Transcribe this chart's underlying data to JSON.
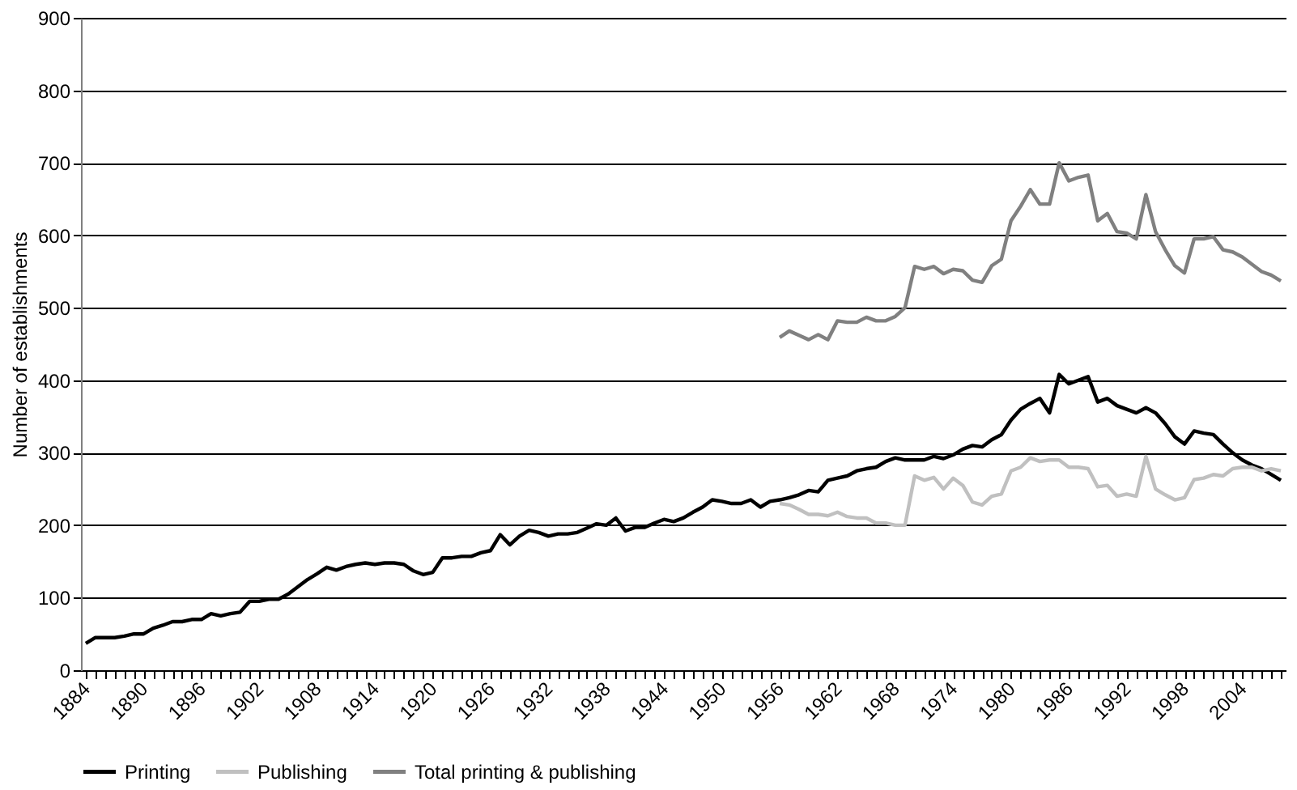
{
  "chart_data": {
    "type": "line",
    "ylabel": "Number of establishments",
    "categories": [
      "1884",
      null,
      null,
      null,
      null,
      null,
      "1890",
      null,
      null,
      null,
      null,
      null,
      "1896",
      null,
      null,
      null,
      null,
      null,
      "1902",
      null,
      null,
      null,
      null,
      null,
      "1908",
      null,
      null,
      null,
      null,
      null,
      "1914",
      null,
      null,
      null,
      null,
      null,
      "1920",
      null,
      null,
      null,
      null,
      null,
      "1926",
      null,
      null,
      null,
      null,
      null,
      "1932",
      null,
      null,
      null,
      null,
      null,
      "1938",
      null,
      null,
      null,
      null,
      null,
      "1944",
      null,
      null,
      null,
      null,
      null,
      "1950",
      null,
      null,
      null,
      null,
      null,
      "1956",
      null,
      null,
      null,
      null,
      null,
      "1962",
      null,
      null,
      null,
      null,
      null,
      "1968",
      null,
      null,
      null,
      null,
      null,
      "1974",
      null,
      null,
      null,
      null,
      null,
      "1980",
      null,
      null,
      null,
      null,
      null,
      "1986",
      null,
      null,
      null,
      null,
      null,
      "1992",
      null,
      null,
      null,
      null,
      null,
      "1998",
      null,
      null,
      null,
      null,
      null,
      "2004",
      null,
      null,
      null,
      null
    ],
    "series": [
      {
        "name": "Printing",
        "color": "#000000",
        "values": [
          37,
          45,
          45,
          45,
          47,
          50,
          50,
          58,
          62,
          67,
          67,
          70,
          70,
          78,
          75,
          78,
          80,
          95,
          95,
          98,
          98,
          105,
          115,
          125,
          133,
          142,
          138,
          143,
          146,
          148,
          146,
          148,
          148,
          146,
          137,
          132,
          135,
          155,
          155,
          157,
          157,
          162,
          165,
          187,
          173,
          185,
          193,
          190,
          185,
          188,
          188,
          190,
          196,
          202,
          200,
          210,
          192,
          197,
          197,
          203,
          208,
          205,
          210,
          218,
          225,
          235,
          233,
          230,
          230,
          235,
          225,
          233,
          235,
          238,
          242,
          248,
          246,
          262,
          265,
          268,
          275,
          278,
          280,
          288,
          293,
          290,
          290,
          290,
          295,
          292,
          297,
          305,
          310,
          308,
          318,
          325,
          345,
          360,
          368,
          375,
          355,
          408,
          395,
          400,
          405,
          370,
          375,
          365,
          360,
          355,
          362,
          355,
          340,
          322,
          312,
          330,
          327,
          325,
          312,
          300,
          290,
          283,
          278,
          270,
          262
        ]
      },
      {
        "name": "Publishing",
        "color": "#c0c0c0",
        "values": [
          null,
          null,
          null,
          null,
          null,
          null,
          null,
          null,
          null,
          null,
          null,
          null,
          null,
          null,
          null,
          null,
          null,
          null,
          null,
          null,
          null,
          null,
          null,
          null,
          null,
          null,
          null,
          null,
          null,
          null,
          null,
          null,
          null,
          null,
          null,
          null,
          null,
          null,
          null,
          null,
          null,
          null,
          null,
          null,
          null,
          null,
          null,
          null,
          null,
          null,
          null,
          null,
          null,
          null,
          null,
          null,
          null,
          null,
          null,
          null,
          null,
          null,
          null,
          null,
          null,
          null,
          null,
          null,
          null,
          null,
          null,
          null,
          230,
          228,
          222,
          215,
          215,
          213,
          218,
          212,
          210,
          210,
          203,
          203,
          200,
          200,
          268,
          262,
          266,
          250,
          265,
          255,
          232,
          228,
          240,
          243,
          275,
          280,
          293,
          288,
          290,
          290,
          280,
          280,
          278,
          253,
          255,
          240,
          243,
          240,
          295,
          250,
          242,
          235,
          238,
          263,
          265,
          270,
          268,
          278,
          280,
          280,
          275,
          278,
          275
        ]
      },
      {
        "name": "Total printing & publishing",
        "color": "#808080",
        "values": [
          null,
          null,
          null,
          null,
          null,
          null,
          null,
          null,
          null,
          null,
          null,
          null,
          null,
          null,
          null,
          null,
          null,
          null,
          null,
          null,
          null,
          null,
          null,
          null,
          null,
          null,
          null,
          null,
          null,
          null,
          null,
          null,
          null,
          null,
          null,
          null,
          null,
          null,
          null,
          null,
          null,
          null,
          null,
          null,
          null,
          null,
          null,
          null,
          null,
          null,
          null,
          null,
          null,
          null,
          null,
          null,
          null,
          null,
          null,
          null,
          null,
          null,
          null,
          null,
          null,
          null,
          null,
          null,
          null,
          null,
          null,
          null,
          459,
          468,
          462,
          456,
          463,
          456,
          482,
          480,
          480,
          487,
          482,
          482,
          488,
          500,
          557,
          553,
          557,
          547,
          553,
          551,
          538,
          535,
          558,
          567,
          620,
          640,
          663,
          643,
          643,
          700,
          675,
          680,
          683,
          620,
          630,
          605,
          603,
          595,
          656,
          605,
          580,
          558,
          548,
          595,
          595,
          598,
          580,
          577,
          570,
          560,
          550,
          545,
          537
        ]
      }
    ],
    "ylim": [
      0,
      900
    ],
    "yticks": [
      0,
      100,
      200,
      300,
      400,
      500,
      600,
      700,
      800,
      900
    ],
    "grid": "y",
    "legend": "bottom",
    "marker": "none",
    "line_style": "solid"
  }
}
